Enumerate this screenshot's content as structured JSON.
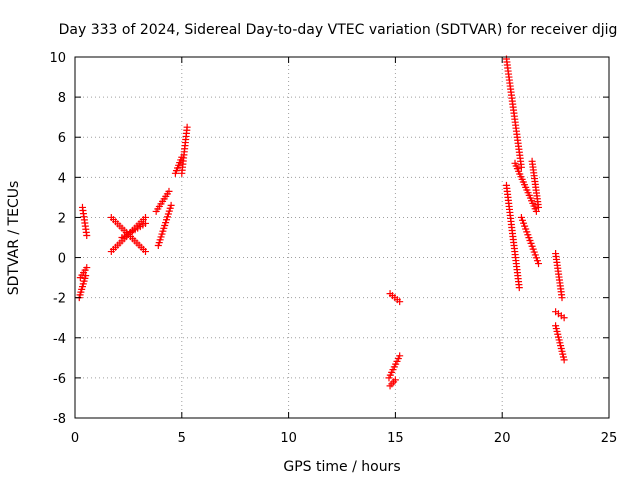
{
  "chart_data": {
    "type": "scatter",
    "title": "Day 333 of 2024, Sidereal Day-to-day VTEC variation (SDTVAR) for receiver djig",
    "xlabel": "GPS time / hours",
    "ylabel": "SDTVAR / TECUs",
    "xlim": [
      0,
      25
    ],
    "ylim": [
      -8,
      10
    ],
    "xticks": [
      0,
      5,
      10,
      15,
      20,
      25
    ],
    "yticks": [
      -8,
      -6,
      -4,
      -2,
      0,
      2,
      4,
      6,
      8,
      10
    ],
    "grid": true,
    "marker": "plus",
    "color": "#ff0000",
    "segments": [
      {
        "x": [
          0.2,
          0.5
        ],
        "y": [
          -2.0,
          -0.9
        ]
      },
      {
        "x": [
          0.25,
          0.55
        ],
        "y": [
          -1.0,
          -0.5
        ]
      },
      {
        "x": [
          0.35,
          0.55
        ],
        "y": [
          2.5,
          1.1
        ]
      },
      {
        "x": [
          1.7,
          3.3
        ],
        "y": [
          0.3,
          2.0
        ]
      },
      {
        "x": [
          1.7,
          3.3
        ],
        "y": [
          2.0,
          0.3
        ]
      },
      {
        "x": [
          2.2,
          3.3
        ],
        "y": [
          1.0,
          1.7
        ]
      },
      {
        "x": [
          3.8,
          4.4
        ],
        "y": [
          2.3,
          3.3
        ]
      },
      {
        "x": [
          3.9,
          4.5
        ],
        "y": [
          0.6,
          2.6
        ]
      },
      {
        "x": [
          4.7,
          5.0
        ],
        "y": [
          4.2,
          5.0
        ]
      },
      {
        "x": [
          5.0,
          5.25
        ],
        "y": [
          4.2,
          6.5
        ]
      },
      {
        "x": [
          14.75,
          15.2
        ],
        "y": [
          -1.8,
          -2.2
        ]
      },
      {
        "x": [
          14.7,
          15.2
        ],
        "y": [
          -6.0,
          -4.9
        ]
      },
      {
        "x": [
          14.75,
          15.0
        ],
        "y": [
          -6.4,
          -6.1
        ]
      },
      {
        "x": [
          20.2,
          20.9
        ],
        "y": [
          9.9,
          4.5
        ]
      },
      {
        "x": [
          20.6,
          21.6
        ],
        "y": [
          4.7,
          2.3
        ]
      },
      {
        "x": [
          20.2,
          20.8
        ],
        "y": [
          3.6,
          -1.5
        ]
      },
      {
        "x": [
          20.9,
          21.7
        ],
        "y": [
          2.0,
          -0.3
        ]
      },
      {
        "x": [
          21.4,
          21.7
        ],
        "y": [
          4.8,
          2.5
        ]
      },
      {
        "x": [
          22.5,
          22.8
        ],
        "y": [
          0.2,
          -2.0
        ]
      },
      {
        "x": [
          22.5,
          22.9
        ],
        "y": [
          -2.7,
          -3.0
        ]
      },
      {
        "x": [
          22.5,
          22.9
        ],
        "y": [
          -3.4,
          -5.1
        ]
      }
    ]
  }
}
